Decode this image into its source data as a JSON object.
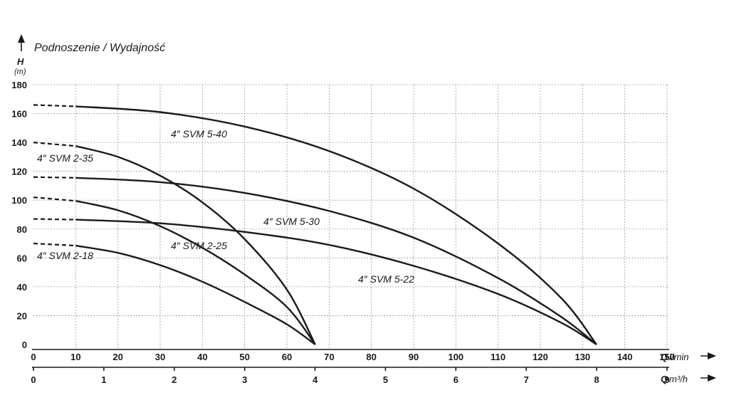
{
  "chart_data": {
    "type": "line",
    "title": "Podnoszenie / Wydajność",
    "ylabel": "H",
    "yunit": "(m)",
    "ylim": [
      0,
      180
    ],
    "yticks": [
      0,
      20,
      40,
      60,
      80,
      100,
      120,
      140,
      160,
      180
    ],
    "xlabel": "Q",
    "xunit": "l/min",
    "xlim": [
      0,
      150
    ],
    "xticks": [
      0,
      10,
      20,
      30,
      40,
      50,
      60,
      70,
      80,
      90,
      100,
      110,
      120,
      130,
      140,
      150
    ],
    "x2label": "Q",
    "x2unit": "m³/h",
    "x2ticks": [
      0,
      1,
      2,
      3,
      4,
      5,
      6,
      7,
      8,
      9
    ],
    "grid": true,
    "series": [
      {
        "name": "4″ SVM 5-40",
        "x": [
          0,
          10,
          30,
          50,
          70,
          90,
          110,
          125,
          133.3
        ],
        "y": [
          166,
          165,
          161,
          151,
          134,
          108,
          70,
          32,
          0
        ]
      },
      {
        "name": "4″ SVM 5-30",
        "x": [
          0,
          10,
          30,
          50,
          70,
          90,
          110,
          125,
          133.3
        ],
        "y": [
          116,
          115.5,
          112.5,
          105,
          92.5,
          74,
          46,
          19,
          0
        ]
      },
      {
        "name": "4″ SVM 5-22",
        "x": [
          0,
          10,
          30,
          50,
          70,
          90,
          110,
          125,
          133.3
        ],
        "y": [
          87,
          86.5,
          84,
          78,
          69,
          54.5,
          35,
          15,
          0
        ]
      },
      {
        "name": "4″ SVM 2-35",
        "x": [
          0,
          10,
          20,
          30,
          40,
          50,
          60,
          66.7
        ],
        "y": [
          140,
          137.5,
          130,
          117,
          98.5,
          73,
          38,
          0
        ]
      },
      {
        "name": "4″ SVM 2-25",
        "x": [
          0,
          10,
          20,
          30,
          40,
          50,
          60,
          66.7
        ],
        "y": [
          102,
          99.5,
          93,
          82,
          67,
          48.5,
          26,
          0
        ]
      },
      {
        "name": "4″ SVM 2-18",
        "x": [
          0,
          10,
          20,
          30,
          40,
          50,
          60,
          66.7
        ],
        "y": [
          70,
          68.5,
          63.5,
          55,
          43.5,
          29.5,
          14,
          0
        ]
      }
    ]
  }
}
